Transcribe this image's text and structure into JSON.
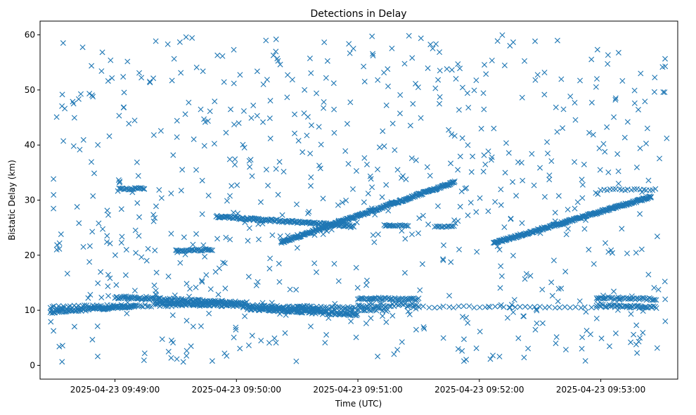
{
  "chart_data": {
    "type": "scatter",
    "title": "Detections in Delay",
    "xlabel": "Time (UTC)",
    "ylabel": "Bistatic Delay (km)",
    "marker": "x",
    "color": "#1f77b4",
    "grid": false,
    "legend": "none",
    "x_unit": "UTC time",
    "xlim": [
      "2025-04-23 09:48:23",
      "2025-04-23 09:53:38"
    ],
    "ylim": [
      -2.5,
      62.5
    ],
    "x_ticks": [
      "2025-04-23 09:49:00",
      "2025-04-23 09:50:00",
      "2025-04-23 09:51:00",
      "2025-04-23 09:52:00",
      "2025-04-23 09:53:00"
    ],
    "y_ticks": [
      "0",
      "10",
      "20",
      "30",
      "40",
      "50",
      "60"
    ],
    "tracks": [
      {
        "x_start": "2025-04-23 09:48:28",
        "x_end": "2025-04-23 09:49:10",
        "y_start": 9.7,
        "y_end": 10.8,
        "spacing_s": 0.45,
        "jitter": 0.25
      },
      {
        "x_start": "2025-04-23 09:48:28",
        "x_end": "2025-04-23 09:50:00",
        "y_start": 10.5,
        "y_end": 11.2,
        "spacing_s": 1.0,
        "jitter": 0.3
      },
      {
        "x_start": "2025-04-23 09:49:00",
        "x_end": "2025-04-23 09:50:05",
        "y_start": 12.4,
        "y_end": 11.3,
        "spacing_s": 0.5,
        "jitter": 0.25
      },
      {
        "x_start": "2025-04-23 09:49:20",
        "x_end": "2025-04-23 09:50:40",
        "y_start": 11.4,
        "y_end": 10.3,
        "spacing_s": 0.6,
        "jitter": 0.25
      },
      {
        "x_start": "2025-04-23 09:50:05",
        "x_end": "2025-04-23 09:51:00",
        "y_start": 10.4,
        "y_end": 9.2,
        "spacing_s": 0.4,
        "jitter": 0.3
      },
      {
        "x_start": "2025-04-23 09:50:30",
        "x_end": "2025-04-23 09:51:15",
        "y_start": 10.6,
        "y_end": 10.1,
        "spacing_s": 0.7,
        "jitter": 0.3
      },
      {
        "x_start": "2025-04-23 09:51:00",
        "x_end": "2025-04-23 09:51:30",
        "y_start": 12.2,
        "y_end": 12.0,
        "spacing_s": 0.6,
        "jitter": 0.2
      },
      {
        "x_start": "2025-04-23 09:51:00",
        "x_end": "2025-04-23 09:51:30",
        "y_start": 10.8,
        "y_end": 11.0,
        "spacing_s": 0.9,
        "jitter": 0.3
      },
      {
        "x_start": "2025-04-23 09:51:25",
        "x_end": "2025-04-23 09:53:25",
        "y_start": 10.6,
        "y_end": 10.6,
        "spacing_s": 2.5,
        "jitter": 0.15
      },
      {
        "x_start": "2025-04-23 09:52:58",
        "x_end": "2025-04-23 09:53:28",
        "y_start": 12.3,
        "y_end": 12.0,
        "spacing_s": 0.7,
        "jitter": 0.2
      },
      {
        "x_start": "2025-04-23 09:52:58",
        "x_end": "2025-04-23 09:53:28",
        "y_start": 10.9,
        "y_end": 10.6,
        "spacing_s": 0.8,
        "jitter": 0.25
      },
      {
        "x_start": "2025-04-23 09:49:02",
        "x_end": "2025-04-23 09:49:15",
        "y_start": 32.0,
        "y_end": 32.1,
        "spacing_s": 0.6,
        "jitter": 0.15
      },
      {
        "x_start": "2025-04-23 09:49:30",
        "x_end": "2025-04-23 09:49:48",
        "y_start": 20.8,
        "y_end": 21.0,
        "spacing_s": 0.6,
        "jitter": 0.15
      },
      {
        "x_start": "2025-04-23 09:49:50",
        "x_end": "2025-04-23 09:50:58",
        "y_start": 27.0,
        "y_end": 25.3,
        "spacing_s": 0.45,
        "jitter": 0.2
      },
      {
        "x_start": "2025-04-23 09:50:22",
        "x_end": "2025-04-23 09:51:48",
        "y_start": 22.3,
        "y_end": 33.3,
        "spacing_s": 0.3,
        "jitter": 0.2
      },
      {
        "x_start": "2025-04-23 09:51:13",
        "x_end": "2025-04-23 09:51:25",
        "y_start": 25.4,
        "y_end": 25.4,
        "spacing_s": 0.7,
        "jitter": 0.1
      },
      {
        "x_start": "2025-04-23 09:51:38",
        "x_end": "2025-04-23 09:51:48",
        "y_start": 25.2,
        "y_end": 25.2,
        "spacing_s": 0.8,
        "jitter": 0.1
      },
      {
        "x_start": "2025-04-23 09:52:07",
        "x_end": "2025-04-23 09:53:25",
        "y_start": 22.2,
        "y_end": 30.6,
        "spacing_s": 0.3,
        "jitter": 0.2
      },
      {
        "x_start": "2025-04-23 09:53:00",
        "x_end": "2025-04-23 09:53:28",
        "y_start": 31.9,
        "y_end": 31.9,
        "spacing_s": 1.5,
        "jitter": 0.15
      }
    ],
    "clutter": {
      "x_start": "2025-04-23 09:48:28",
      "x_end": "2025-04-23 09:53:33",
      "y_min": 0.5,
      "y_max": 60,
      "count": 720,
      "seed": 20250423
    }
  }
}
